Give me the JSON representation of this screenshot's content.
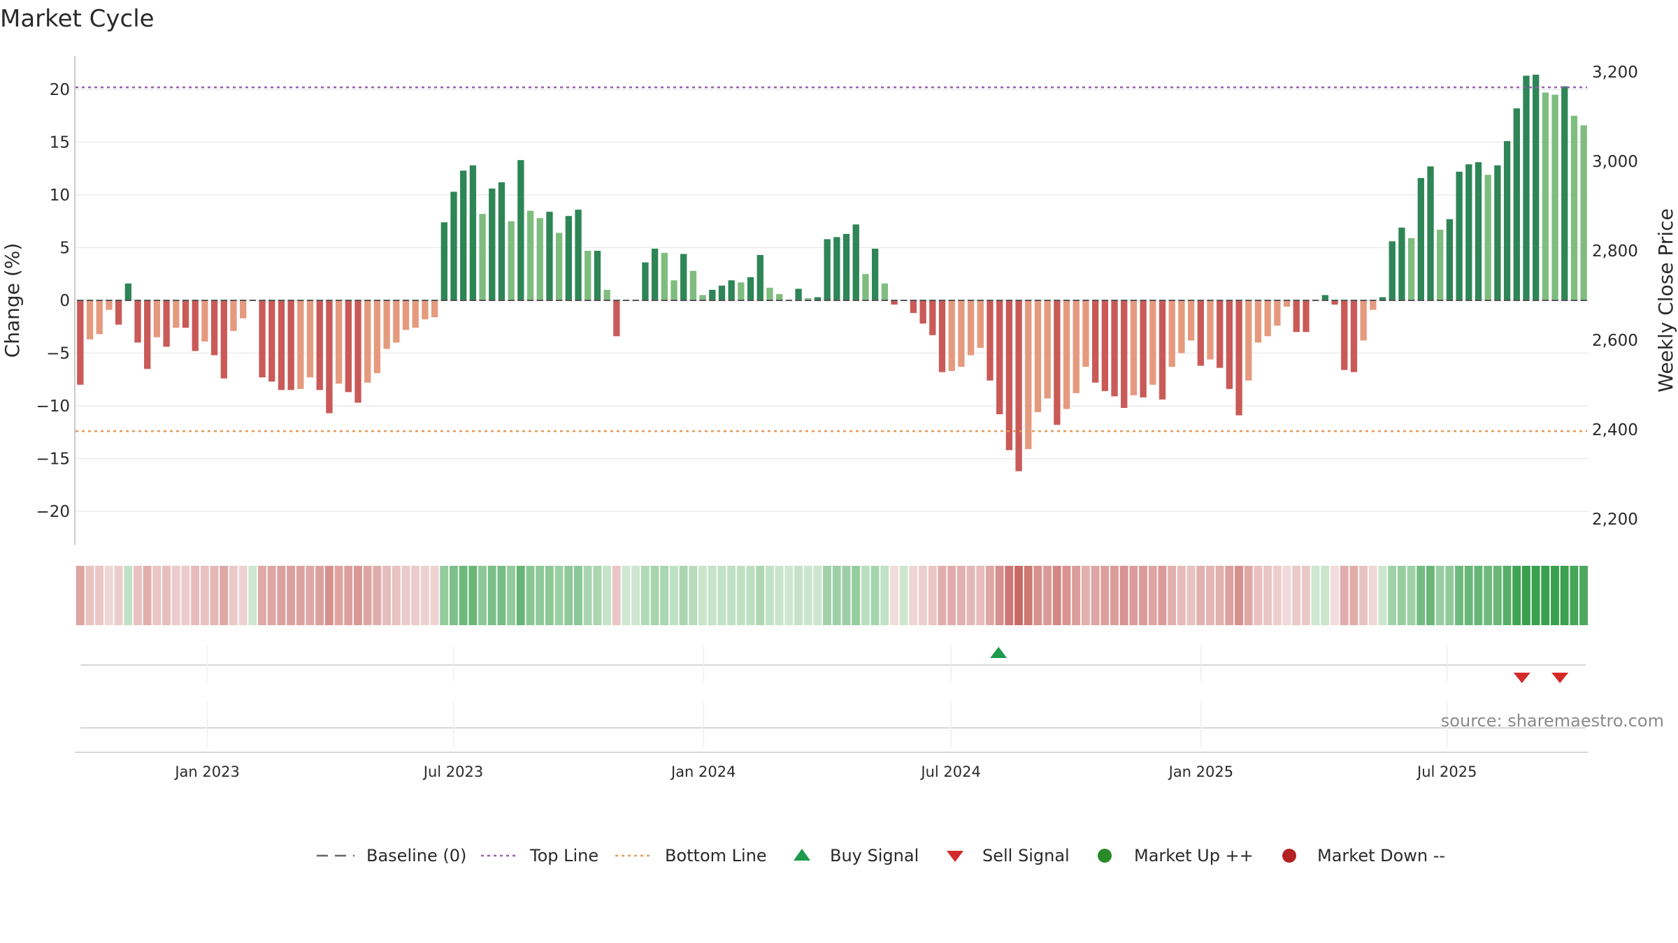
{
  "chart_data": {
    "type": "bar",
    "title": "Market Cycle",
    "ylabel": "Change (%)",
    "y2label": "Weekly Close Price",
    "ylim": [
      -23.5,
      23.5
    ],
    "yticks": [
      20,
      15,
      10,
      5,
      0,
      -5,
      -10,
      -15,
      -20
    ],
    "ytick_labels": [
      "20",
      "15",
      "10",
      "5",
      "0",
      "−5",
      "−10",
      "−15",
      "−20"
    ],
    "y2ticks": [
      3200,
      3000,
      2800,
      2600,
      2400,
      2200
    ],
    "y2tick_labels": [
      "3,200",
      "3,000",
      "2,800",
      "2,600",
      "2,400",
      "2,200"
    ],
    "top_line": 20.2,
    "bottom_line": -12.4,
    "x_start": "2022-09-26",
    "x_end": "2025-10-13",
    "week_start": "2022-09-26",
    "xticks": [
      {
        "date": "2023-01-01",
        "label": "Jan 2023"
      },
      {
        "date": "2023-07-01",
        "label": "Jul 2023"
      },
      {
        "date": "2024-01-01",
        "label": "Jan 2024"
      },
      {
        "date": "2024-07-01",
        "label": "Jul 2024"
      },
      {
        "date": "2025-01-01",
        "label": "Jan 2025"
      },
      {
        "date": "2025-07-01",
        "label": "Jul 2025"
      }
    ],
    "values": [
      -8.0,
      -3.7,
      -3.2,
      -0.9,
      -2.3,
      1.6,
      -4.0,
      -6.5,
      -3.5,
      -4.4,
      -2.6,
      -2.6,
      -4.8,
      -3.9,
      -5.2,
      -7.4,
      -2.9,
      -1.7,
      0,
      -7.3,
      -7.7,
      -8.5,
      -8.5,
      -8.4,
      -7.3,
      -8.5,
      -10.7,
      -7.9,
      -8.7,
      -9.7,
      -7.8,
      -6.9,
      -4.6,
      -4.0,
      -2.8,
      -2.6,
      -1.8,
      -1.6,
      7.4,
      10.3,
      12.3,
      12.8,
      8.2,
      10.6,
      11.2,
      7.5,
      13.3,
      8.5,
      7.8,
      8.4,
      6.4,
      8.0,
      8.6,
      4.7,
      4.7,
      1.0,
      -3.4,
      0,
      0,
      3.6,
      4.9,
      4.5,
      1.9,
      4.4,
      2.8,
      0.5,
      1.0,
      1.4,
      1.9,
      1.7,
      2.2,
      4.3,
      1.2,
      0.6,
      0,
      1.1,
      0.2,
      0.3,
      5.8,
      6.0,
      6.3,
      7.2,
      2.5,
      4.9,
      1.6,
      -0.4,
      0,
      -1.2,
      -2.2,
      -3.3,
      -6.8,
      -6.7,
      -6.3,
      -5.2,
      -4.5,
      -7.6,
      -10.8,
      -14.2,
      -16.2,
      -14.1,
      -10.6,
      -9.3,
      -11.8,
      -10.3,
      -8.8,
      -6.3,
      -7.8,
      -8.6,
      -9.1,
      -10.2,
      -9.0,
      -9.2,
      -8.0,
      -9.4,
      -6.3,
      -5.0,
      -3.8,
      -6.2,
      -5.6,
      -6.4,
      -8.4,
      -10.9,
      -7.6,
      -4.0,
      -3.4,
      -2.4,
      -0.6,
      -3.0,
      -3.0,
      0,
      0.5,
      -0.4,
      -6.6,
      -6.8,
      -3.8,
      -0.9,
      0.3,
      5.6,
      6.9,
      5.9,
      11.6,
      12.7,
      6.7,
      7.7,
      12.2,
      12.9,
      13.1,
      11.9,
      12.8,
      15.1,
      18.2,
      21.3,
      21.4,
      19.7,
      19.5,
      20.3,
      17.5,
      16.6
    ],
    "buy_signals": [
      "2024-08-05"
    ],
    "sell_signals": [
      "2025-08-25",
      "2025-09-22"
    ],
    "colors": {
      "up_strong": "#2e8556",
      "up_light": "#7fbd7f",
      "down_strong": "#c95a58",
      "down_light": "#e59a7e",
      "top_line": "#9a5fb4",
      "bottom_line": "#e59a58",
      "buy": "#1d9a4b",
      "sell": "#d42a2a",
      "market_up": "#2a8a2a",
      "market_down": "#b22222"
    },
    "legend": [
      {
        "key": "baseline",
        "label": "Baseline (0)"
      },
      {
        "key": "top",
        "label": "Top Line"
      },
      {
        "key": "bottom",
        "label": "Bottom Line"
      },
      {
        "key": "buy",
        "label": "Buy Signal"
      },
      {
        "key": "sell",
        "label": "Sell Signal"
      },
      {
        "key": "mup",
        "label": "Market Up ++"
      },
      {
        "key": "mdown",
        "label": "Market Down --"
      }
    ],
    "source": "source: sharemaestro.com"
  }
}
